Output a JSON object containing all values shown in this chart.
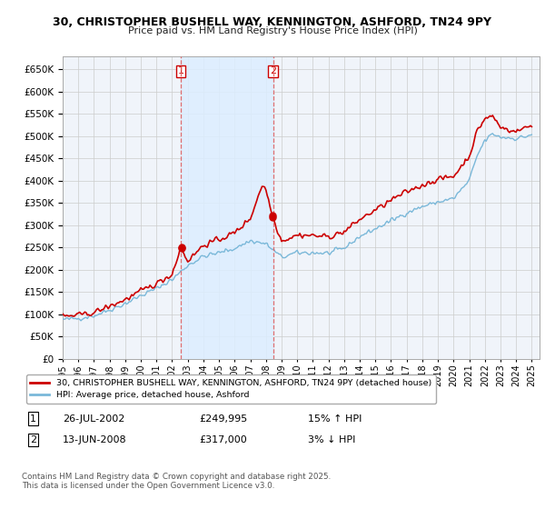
{
  "title1": "30, CHRISTOPHER BUSHELL WAY, KENNINGTON, ASHFORD, TN24 9PY",
  "title2": "Price paid vs. HM Land Registry's House Price Index (HPI)",
  "ytick_values": [
    0,
    50000,
    100000,
    150000,
    200000,
    250000,
    300000,
    350000,
    400000,
    450000,
    500000,
    550000,
    600000,
    650000
  ],
  "ylim": [
    0,
    680000
  ],
  "xlim_start": 1995.0,
  "xlim_end": 2025.5,
  "hpi_color": "#7ab8d9",
  "price_color": "#cc0000",
  "vline_color": "#e06060",
  "shade_color": "#ddeeff",
  "grid_color": "#cccccc",
  "background_chart": "#f0f4fa",
  "background_fig": "#ffffff",
  "legend_label_red": "30, CHRISTOPHER BUSHELL WAY, KENNINGTON, ASHFORD, TN24 9PY (detached house)",
  "legend_label_blue": "HPI: Average price, detached house, Ashford",
  "transaction1_date": "26-JUL-2002",
  "transaction1_price": "£249,995",
  "transaction1_hpi": "15% ↑ HPI",
  "transaction1_year": 2002.55,
  "transaction2_date": "13-JUN-2008",
  "transaction2_price": "£317,000",
  "transaction2_hpi": "3% ↓ HPI",
  "transaction2_year": 2008.45,
  "footer": "Contains HM Land Registry data © Crown copyright and database right 2025.\nThis data is licensed under the Open Government Licence v3.0."
}
